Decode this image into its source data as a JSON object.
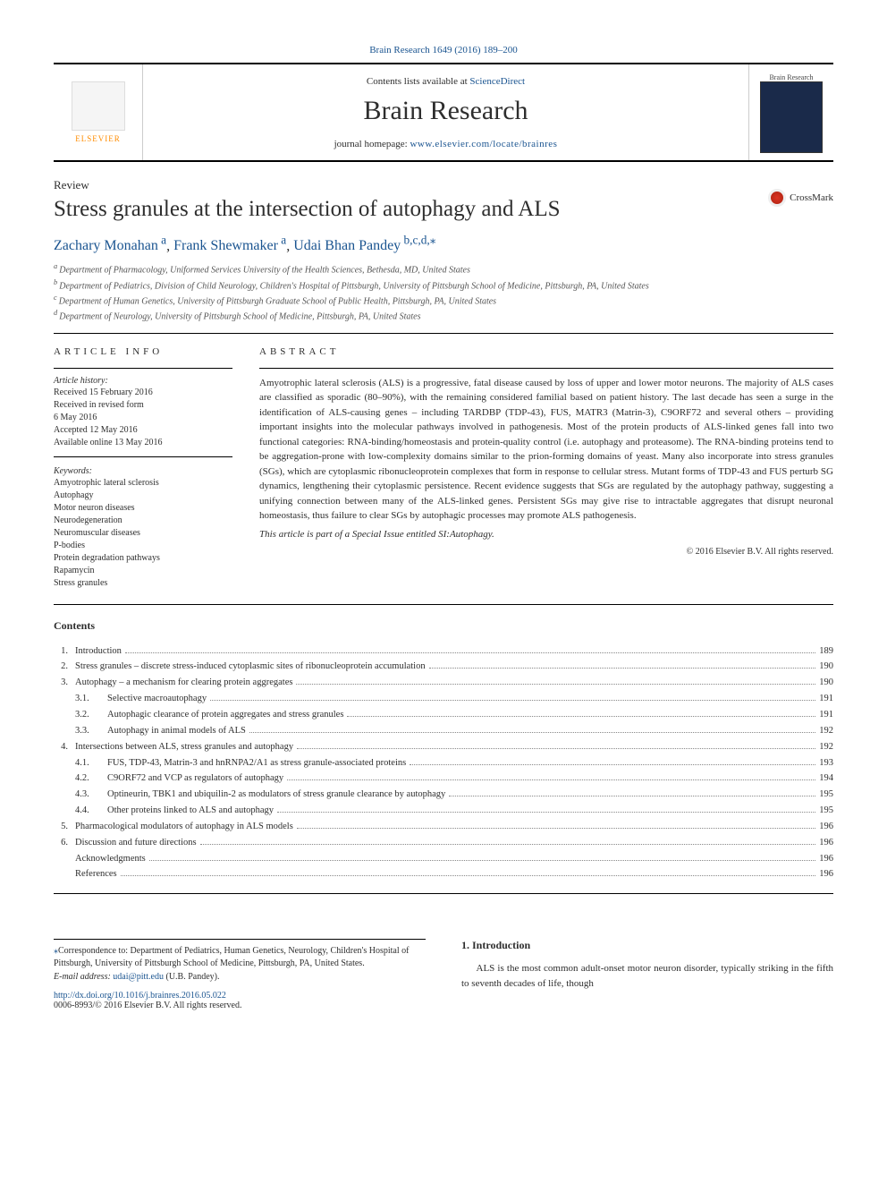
{
  "topCitation": "Brain Research 1649 (2016) 189–200",
  "header": {
    "publisherText": "ELSEVIER",
    "contentsLine_prefix": "Contents lists available at ",
    "contentsLine_link": "ScienceDirect",
    "journalName": "Brain Research",
    "homepage_prefix": "journal homepage: ",
    "homepage_link": "www.elsevier.com/locate/brainres",
    "coverLabel": "Brain Research"
  },
  "article": {
    "type": "Review",
    "title": "Stress granules at the intersection of autophagy and ALS",
    "crossmark": "CrossMark"
  },
  "authors": [
    {
      "name": "Zachary Monahan",
      "aff": "a"
    },
    {
      "name": "Frank Shewmaker",
      "aff": "a"
    },
    {
      "name": "Udai Bhan Pandey",
      "aff": "b,c,d,",
      "corr": true
    }
  ],
  "affiliations": [
    {
      "sup": "a",
      "text": "Department of Pharmacology, Uniformed Services University of the Health Sciences, Bethesda, MD, United States"
    },
    {
      "sup": "b",
      "text": "Department of Pediatrics, Division of Child Neurology, Children's Hospital of Pittsburgh, University of Pittsburgh School of Medicine, Pittsburgh, PA, United States"
    },
    {
      "sup": "c",
      "text": "Department of Human Genetics, University of Pittsburgh Graduate School of Public Health, Pittsburgh, PA, United States"
    },
    {
      "sup": "d",
      "text": "Department of Neurology, University of Pittsburgh School of Medicine, Pittsburgh, PA, United States"
    }
  ],
  "info": {
    "heading": "ARTICLE INFO",
    "historyLabel": "Article history:",
    "history": [
      "Received 15 February 2016",
      "Received in revised form",
      "6 May 2016",
      "Accepted 12 May 2016",
      "Available online 13 May 2016"
    ],
    "keywordsLabel": "Keywords:",
    "keywords": [
      "Amyotrophic lateral sclerosis",
      "Autophagy",
      "Motor neuron diseases",
      "Neurodegeneration",
      "Neuromuscular diseases",
      "P-bodies",
      "Protein degradation pathways",
      "Rapamycin",
      "Stress granules"
    ]
  },
  "abstract": {
    "heading": "ABSTRACT",
    "text": "Amyotrophic lateral sclerosis (ALS) is a progressive, fatal disease caused by loss of upper and lower motor neurons. The majority of ALS cases are classified as sporadic (80–90%), with the remaining considered familial based on patient history. The last decade has seen a surge in the identification of ALS-causing genes – including TARDBP (TDP-43), FUS, MATR3 (Matrin-3), C9ORF72 and several others – providing important insights into the molecular pathways involved in pathogenesis. Most of the protein products of ALS-linked genes fall into two functional categories: RNA-binding/homeostasis and protein-quality control (i.e. autophagy and proteasome). The RNA-binding proteins tend to be aggregation-prone with low-complexity domains similar to the prion-forming domains of yeast. Many also incorporate into stress granules (SGs), which are cytoplasmic ribonucleoprotein complexes that form in response to cellular stress. Mutant forms of TDP-43 and FUS perturb SG dynamics, lengthening their cytoplasmic persistence. Recent evidence suggests that SGs are regulated by the autophagy pathway, suggesting a unifying connection between many of the ALS-linked genes. Persistent SGs may give rise to intractable aggregates that disrupt neuronal homeostasis, thus failure to clear SGs by autophagic processes may promote ALS pathogenesis.",
    "note": "This article is part of a Special Issue entitled SI:Autophagy.",
    "copyright": "© 2016 Elsevier B.V. All rights reserved."
  },
  "contents": {
    "title": "Contents",
    "items": [
      {
        "num": "1.",
        "title": "Introduction",
        "page": "189",
        "level": 0
      },
      {
        "num": "2.",
        "title": "Stress granules – discrete stress-induced cytoplasmic sites of ribonucleoprotein accumulation",
        "page": "190",
        "level": 0
      },
      {
        "num": "3.",
        "title": "Autophagy – a mechanism for clearing protein aggregates",
        "page": "190",
        "level": 0
      },
      {
        "num": "3.1.",
        "title": "Selective macroautophagy",
        "page": "191",
        "level": 1
      },
      {
        "num": "3.2.",
        "title": "Autophagic clearance of protein aggregates and stress granules",
        "page": "191",
        "level": 1
      },
      {
        "num": "3.3.",
        "title": "Autophagy in animal models of ALS",
        "page": "192",
        "level": 1
      },
      {
        "num": "4.",
        "title": "Intersections between ALS, stress granules and autophagy",
        "page": "192",
        "level": 0
      },
      {
        "num": "4.1.",
        "title": "FUS, TDP-43, Matrin-3 and hnRNPA2/A1 as stress granule-associated proteins",
        "page": "193",
        "level": 1
      },
      {
        "num": "4.2.",
        "title": "C9ORF72 and VCP as regulators of autophagy",
        "page": "194",
        "level": 1
      },
      {
        "num": "4.3.",
        "title": "Optineurin, TBK1 and ubiquilin-2 as modulators of stress granule clearance by autophagy",
        "page": "195",
        "level": 1
      },
      {
        "num": "4.4.",
        "title": "Other proteins linked to ALS and autophagy",
        "page": "195",
        "level": 1
      },
      {
        "num": "5.",
        "title": "Pharmacological modulators of autophagy in ALS models",
        "page": "196",
        "level": 0
      },
      {
        "num": "6.",
        "title": "Discussion and future directions",
        "page": "196",
        "level": 0
      },
      {
        "num": "",
        "title": "Acknowledgments",
        "page": "196",
        "level": 0
      },
      {
        "num": "",
        "title": "References",
        "page": "196",
        "level": 0
      }
    ]
  },
  "footer": {
    "corrText": "Correspondence to: Department of Pediatrics, Human Genetics, Neurology, Children's Hospital of Pittsburgh, University of Pittsburgh School of Medicine, Pittsburgh, PA, United States.",
    "emailLabel": "E-mail address: ",
    "email": "udai@pitt.edu",
    "emailPerson": " (U.B. Pandey).",
    "doi": "http://dx.doi.org/10.1016/j.brainres.2016.05.022",
    "issn_copy": "0006-8993/© 2016 Elsevier B.V. All rights reserved."
  },
  "introduction": {
    "heading": "1.  Introduction",
    "text": "ALS is the most common adult-onset motor neuron disorder, typically striking in the fifth to seventh decades of life, though"
  },
  "colors": {
    "link": "#1a5490",
    "text": "#2e2e2e",
    "publisherOrange": "#ff8c00"
  }
}
